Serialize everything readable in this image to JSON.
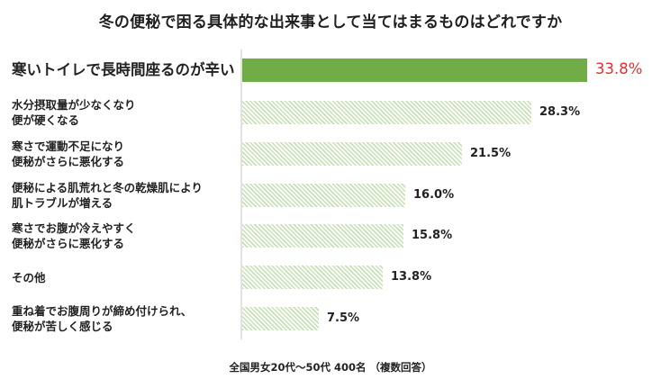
{
  "title": "冬の便秘で困る具体的な出来事として当てはまるものはどれですか",
  "footer": "全国男女20代～50代 400名 （複数回答）",
  "colors": {
    "highlight_bar": "#70ad47",
    "hatch_bar": "#c6e1b4",
    "highlight_value": "#e03131",
    "axis": "#e2e2e2"
  },
  "rows": [
    {
      "line1": "寒いトイレで長時間座るのが辛い",
      "line2": "",
      "value": 33.8,
      "value_label": "33.8%",
      "highlight": true
    },
    {
      "line1": "水分摂取量が少なくなり",
      "line2": "便が硬くなる",
      "value": 28.3,
      "value_label": "28.3%",
      "highlight": false
    },
    {
      "line1": "寒さで運動不足になり",
      "line2": "便秘がさらに悪化する",
      "value": 21.5,
      "value_label": "21.5%",
      "highlight": false
    },
    {
      "line1": "便秘による肌荒れと冬の乾燥肌により",
      "line2": "肌トラブルが増える",
      "value": 16.0,
      "value_label": "16.0%",
      "highlight": false
    },
    {
      "line1": "寒さでお腹が冷えやすく",
      "line2": "便秘がさらに悪化する",
      "value": 15.8,
      "value_label": "15.8%",
      "highlight": false
    },
    {
      "line1": "その他",
      "line2": "",
      "value": 13.8,
      "value_label": "13.8%",
      "highlight": false
    },
    {
      "line1": "重ね着でお腹周りが締め付けられ、",
      "line2": "便秘が苦しく感じる",
      "value": 7.5,
      "value_label": "7.5%",
      "highlight": false
    }
  ],
  "chart_data": {
    "type": "bar",
    "orientation": "horizontal",
    "title": "冬の便秘で困る具体的な出来事として当てはまるものはどれですか",
    "categories": [
      "寒いトイレで長時間座るのが辛い",
      "水分摂取量が少なくなり便が硬くなる",
      "寒さで運動不足になり便秘がさらに悪化する",
      "便秘による肌荒れと冬の乾燥肌により肌トラブルが増える",
      "寒さでお腹が冷えやすく便秘がさらに悪化する",
      "その他",
      "重ね着でお腹周りが締め付けられ、便秘が苦しく感じる"
    ],
    "values": [
      33.8,
      28.3,
      21.5,
      16.0,
      15.8,
      13.8,
      7.5
    ],
    "unit": "%",
    "xlabel": "",
    "ylabel": "",
    "grid": false,
    "legend": null,
    "note": "全国男女20代～50代 400名 （複数回答）",
    "highlighted_category_index": 0
  }
}
